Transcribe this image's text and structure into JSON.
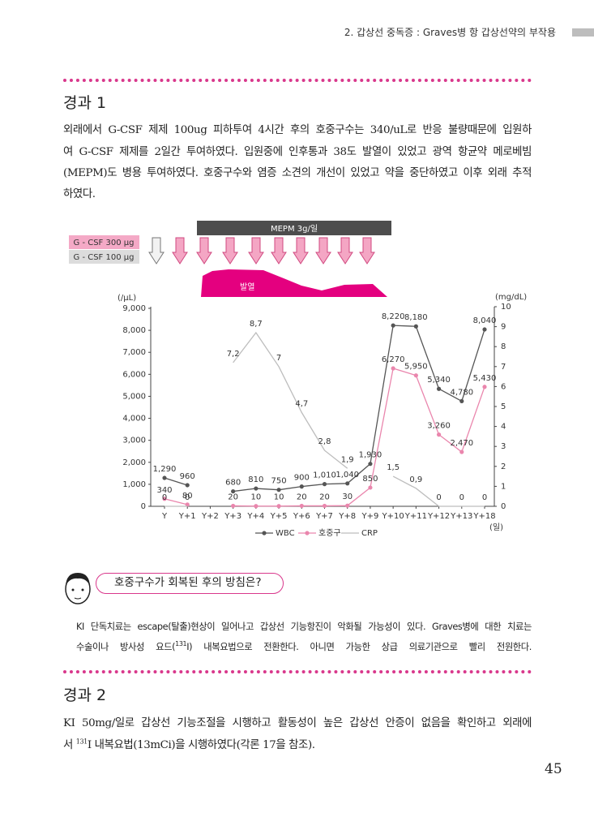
{
  "header": {
    "running_title": "2. 갑상선 중독증 : Graves병 항 갑상선약의 부작용",
    "page_number": "45"
  },
  "case1": {
    "title": "경과 1",
    "lines": [
      "외래에서 G-CSF 제제 100ug 피하투여 4시간 후의 호중구수는 340/uL로 반응 불량때문에 입원하",
      "여 G-CSF 제제를 2일간 투여하였다. 입원중에 인후통과 38도 발열이 있었고 광역 항균약 메로베빔",
      "(MEPM)도 병용 투여하였다. 호중구수와 염증 소견의 개선이 있었고 약을 중단하였고 이후 외래 추적",
      "하였다."
    ]
  },
  "chart_data": {
    "type": "line",
    "treatment_bar": "MEPM 3g/일",
    "gcsf_legend": [
      "G - CSF 300 μg",
      "G - CSF 100 μg"
    ],
    "fever_label": "발열",
    "y_label": "(/μL)",
    "y2_label": "(mg/dL)",
    "x_label": "(일)",
    "categories": [
      "Y",
      "Y+1",
      "Y+2",
      "Y+3",
      "Y+4",
      "Y+5",
      "Y+6",
      "Y+7",
      "Y+8",
      "Y+9",
      "Y+10",
      "Y+11",
      "Y+12",
      "Y+13",
      "Y+18"
    ],
    "ylim": [
      0,
      9000
    ],
    "yticks": [
      0,
      {
        "value": 1000,
        "label": "1,000"
      },
      {
        "value": 2000,
        "label": "2,000"
      },
      {
        "value": 3000,
        "label": "3,000"
      },
      {
        "value": 4000,
        "label": "4,000"
      },
      {
        "value": 5000,
        "label": "5,000"
      },
      {
        "value": 6000,
        "label": "6,000"
      },
      {
        "value": 7000,
        "label": "7,000"
      },
      {
        "value": 8000,
        "label": "8,000"
      },
      {
        "value": 9000,
        "label": "9,000"
      }
    ],
    "y2lim": [
      0,
      10
    ],
    "y2ticks": [
      0,
      1,
      2,
      3,
      4,
      5,
      6,
      7,
      8,
      9,
      10
    ],
    "grid": false,
    "series": [
      {
        "name": "WBC",
        "color": "#555555",
        "marker": true,
        "values": [
          1290,
          960,
          null,
          680,
          810,
          750,
          900,
          1010,
          1040,
          1930,
          8220,
          8180,
          5340,
          4780,
          8040
        ],
        "value_labels": [
          "1,290",
          "960",
          null,
          "680",
          "810",
          "750",
          "900",
          "1,010",
          "1,040",
          "1,930",
          "8,220",
          "8,180",
          "5,340",
          "4,780",
          "8,040"
        ]
      },
      {
        "name": "호중구",
        "color": "#ea86ad",
        "marker": true,
        "values": [
          340,
          80,
          null,
          20,
          10,
          10,
          20,
          20,
          30,
          850,
          6270,
          5950,
          3260,
          2470,
          5430
        ],
        "value_labels": [
          "340",
          "80",
          null,
          "20",
          "10",
          "10",
          "20",
          "20",
          "30",
          "850",
          "6,270",
          "5,950",
          "3,260",
          "2,470",
          "5,430"
        ]
      },
      {
        "name": "CRP",
        "color": "#bdbdbd",
        "marker": false,
        "axis": "y2",
        "values": [
          0,
          0,
          null,
          7.2,
          8.7,
          7,
          4.7,
          2.8,
          1.9,
          null,
          1.5,
          0.9,
          0,
          0,
          0
        ],
        "value_labels": [
          "0",
          "0",
          null,
          "7,2",
          "8,7",
          "7",
          "4,7",
          "2,8",
          "1,9",
          null,
          "1,5",
          "0,9",
          "0",
          "0",
          "0"
        ]
      }
    ]
  },
  "question": {
    "text": "호중구수가 회복된 후의 방침은?",
    "lines": [
      [
        "KI 단독치료는 escape(탈출)현상이 일어나고 갑상선 기능항진이 악화될 가능성이 있다. Graves병에 대한 치료는"
      ],
      [
        "수술이나 방사성 요드(",
        "131",
        "I) 내복요법으로 전환한다. 아니면 가능한 상급 의료기관으로 빨리 전원한다."
      ]
    ]
  },
  "case2": {
    "title": "경과 2",
    "lines": [
      [
        "KI 50mg/일로 갑상선 기능조절을 시행하고 활동성이 높은 갑상선 안증이 없음을 확인하고 외래에"
      ],
      [
        "서",
        "131",
        "I 내복요법(13mCi)을 시행하였다(각론 17을 참조)."
      ]
    ]
  }
}
